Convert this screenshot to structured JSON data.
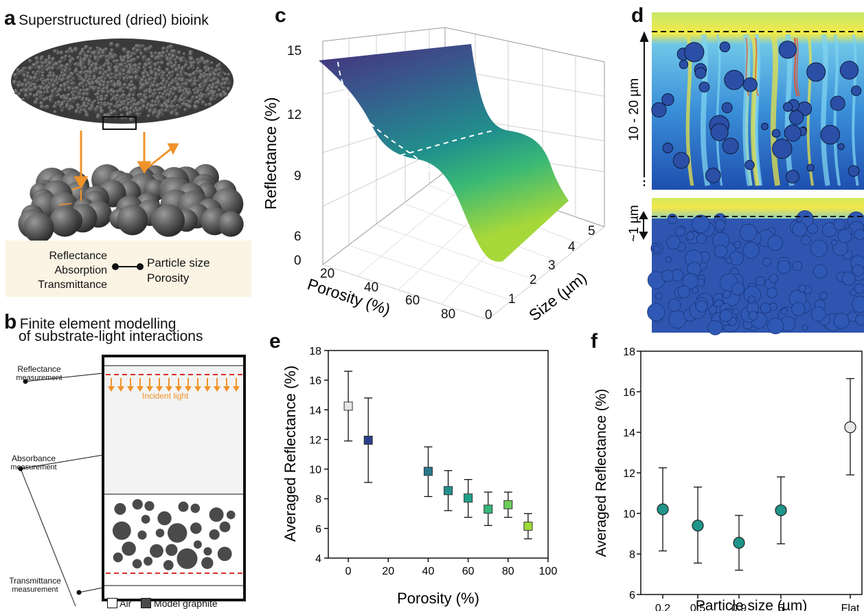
{
  "panel_a": {
    "letter": "a",
    "title": "Superstructured (dried) bioink",
    "left_terms": [
      "Reflectance",
      "Absorption",
      "Transmittance"
    ],
    "right_terms": [
      "Particle size",
      "Porosity"
    ]
  },
  "panel_b": {
    "letter": "b",
    "title_line1": "Finite element modelling",
    "title_line2": "of substrate-light interactions",
    "label_reflectance": "Reflectance",
    "label_absorbance": "Absorbance",
    "label_transmittance": "Transmittance",
    "label_measurement": "measurement",
    "incident_light": "Incident light",
    "legend_air": "Air",
    "legend_graphite": "Model graphite",
    "colors": {
      "incident": "#f0932b",
      "dashed": "#d62b2b",
      "particle": "#4a4a4a"
    }
  },
  "panel_c": {
    "letter": "c",
    "zlabel": "Reflectance (%)",
    "xlabel": "Porosity (%)",
    "ylabel": "Size (µm)",
    "z_ticks": [
      "15",
      "12",
      "9",
      "6",
      "0"
    ],
    "x_ticks": [
      "20",
      "40",
      "60",
      "80"
    ],
    "y_ticks": [
      "0",
      "1",
      "2",
      "3",
      "4",
      "5"
    ],
    "colormap": "viridis"
  },
  "panel_d": {
    "letter": "d",
    "top_label": "10 - 20 µm",
    "bottom_label": "~1 µm"
  },
  "chart_data": [
    {
      "id": "e",
      "type": "scatter",
      "letter": "e",
      "xlabel": "Porosity (%)",
      "ylabel": "Averaged Reflectance (%)",
      "xlim": [
        -10,
        100
      ],
      "ylim": [
        4,
        18
      ],
      "x_ticks": [
        0,
        20,
        40,
        60,
        80,
        100
      ],
      "y_ticks": [
        4,
        6,
        8,
        10,
        12,
        14,
        16,
        18
      ],
      "marker": "square",
      "points": [
        {
          "x": 0,
          "y": 14.25,
          "err_low": 11.9,
          "err_high": 16.6,
          "color": "#e6e6e6"
        },
        {
          "x": 10,
          "y": 11.95,
          "err_low": 9.1,
          "err_high": 14.8,
          "color": "#2c3f8c"
        },
        {
          "x": 40,
          "y": 9.85,
          "err_low": 8.15,
          "err_high": 11.5,
          "color": "#2a788e"
        },
        {
          "x": 50,
          "y": 8.55,
          "err_low": 7.2,
          "err_high": 9.9,
          "color": "#22908c"
        },
        {
          "x": 60,
          "y": 8.05,
          "err_low": 6.75,
          "err_high": 9.3,
          "color": "#1fa188"
        },
        {
          "x": 70,
          "y": 7.3,
          "err_low": 6.2,
          "err_high": 8.45,
          "color": "#35b779"
        },
        {
          "x": 80,
          "y": 7.6,
          "err_low": 6.75,
          "err_high": 8.45,
          "color": "#6ccd5a"
        },
        {
          "x": 90,
          "y": 6.15,
          "err_low": 5.3,
          "err_high": 7.0,
          "color": "#9fda3a"
        }
      ]
    },
    {
      "id": "f",
      "type": "scatter",
      "letter": "f",
      "xlabel": "Particle size (µm)",
      "ylabel": "Averaged Reflectance (%)",
      "categories": [
        "0.2",
        "0.5",
        "0.9",
        "5",
        "Flat"
      ],
      "ylim": [
        6,
        18
      ],
      "y_ticks": [
        6,
        8,
        10,
        12,
        14,
        16,
        18
      ],
      "marker": "circle",
      "points": [
        {
          "x": "0.2",
          "y": 10.2,
          "err_low": 8.15,
          "err_high": 12.25,
          "color": "#1f9488"
        },
        {
          "x": "0.5",
          "y": 9.4,
          "err_low": 7.55,
          "err_high": 11.3,
          "color": "#1f9488"
        },
        {
          "x": "0.9",
          "y": 8.55,
          "err_low": 7.2,
          "err_high": 9.9,
          "color": "#1f9488"
        },
        {
          "x": "5",
          "y": 10.15,
          "err_low": 8.5,
          "err_high": 11.8,
          "color": "#1f9488"
        },
        {
          "x": "Flat",
          "y": 14.25,
          "err_low": 11.9,
          "err_high": 16.65,
          "color": "#e6e6e6"
        }
      ]
    }
  ]
}
